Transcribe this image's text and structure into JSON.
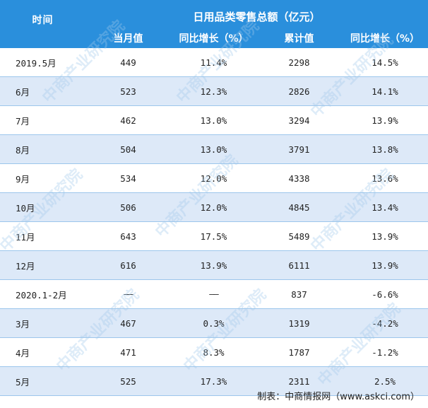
{
  "header": {
    "time_label": "时间",
    "group_label": "日用品类零售总额（亿元）",
    "columns": [
      "当月值",
      "同比增长（%）",
      "累计值",
      "同比增长（%）"
    ]
  },
  "rows": [
    {
      "period": "2019.5月",
      "monthly": "449",
      "monthly_yoy": "11.4%",
      "cumulative": "2298",
      "cumulative_yoy": "14.5%"
    },
    {
      "period": "6月",
      "monthly": "523",
      "monthly_yoy": "12.3%",
      "cumulative": "2826",
      "cumulative_yoy": "14.1%"
    },
    {
      "period": "7月",
      "monthly": "462",
      "monthly_yoy": "13.0%",
      "cumulative": "3294",
      "cumulative_yoy": "13.9%"
    },
    {
      "period": "8月",
      "monthly": "504",
      "monthly_yoy": "13.0%",
      "cumulative": "3791",
      "cumulative_yoy": "13.8%"
    },
    {
      "period": "9月",
      "monthly": "534",
      "monthly_yoy": "12.0%",
      "cumulative": "4338",
      "cumulative_yoy": "13.6%"
    },
    {
      "period": "10月",
      "monthly": "506",
      "monthly_yoy": "12.0%",
      "cumulative": "4845",
      "cumulative_yoy": "13.4%"
    },
    {
      "period": "11月",
      "monthly": "643",
      "monthly_yoy": "17.5%",
      "cumulative": "5489",
      "cumulative_yoy": "13.9%"
    },
    {
      "period": "12月",
      "monthly": "616",
      "monthly_yoy": "13.9%",
      "cumulative": "6111",
      "cumulative_yoy": "13.9%"
    },
    {
      "period": "2020.1-2月",
      "monthly": "——",
      "monthly_yoy": "——",
      "cumulative": "837",
      "cumulative_yoy": "-6.6%"
    },
    {
      "period": "3月",
      "monthly": "467",
      "monthly_yoy": "0.3%",
      "cumulative": "1319",
      "cumulative_yoy": "-4.2%"
    },
    {
      "period": "4月",
      "monthly": "471",
      "monthly_yoy": "8.3%",
      "cumulative": "1787",
      "cumulative_yoy": "-1.2%"
    },
    {
      "period": "5月",
      "monthly": "525",
      "monthly_yoy": "17.3%",
      "cumulative": "2311",
      "cumulative_yoy": "2.5%"
    }
  ],
  "footer": {
    "source": "制表：中商情报网（www.askci.com）"
  },
  "watermark": {
    "text": "中商产业研究院"
  }
}
